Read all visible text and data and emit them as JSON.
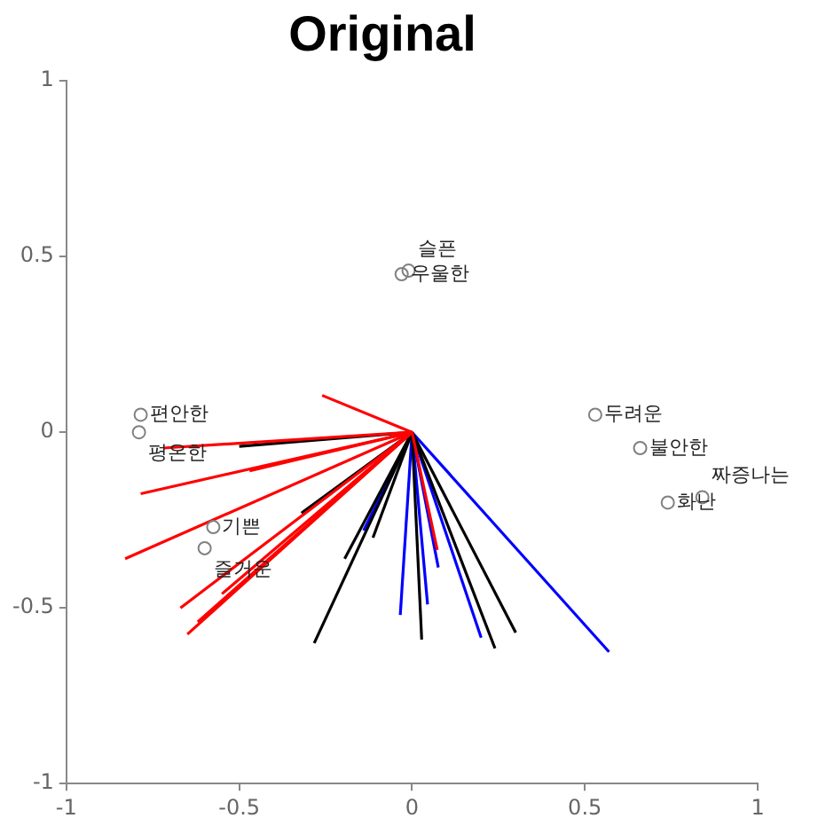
{
  "chart_data": {
    "type": "line",
    "title": "Original",
    "xlim": [
      -1,
      1
    ],
    "ylim": [
      -1,
      1
    ],
    "xticks": [
      -1,
      -0.5,
      0,
      0.5,
      1
    ],
    "yticks": [
      -1,
      -0.5,
      0,
      0.5,
      1
    ],
    "grid": false,
    "legend": false,
    "series": [
      {
        "color": "#ff0000",
        "x": [
          0,
          -0.26
        ],
        "values": [
          0,
          0.105
        ]
      },
      {
        "type": "line",
        "color": "#ff0000",
        "x": [
          0,
          -0.72
        ],
        "values": [
          0,
          -0.045
        ]
      },
      {
        "type": "line",
        "color": "#ff0000",
        "x": [
          0,
          -0.785
        ],
        "values": [
          0,
          -0.175
        ]
      },
      {
        "type": "line",
        "color": "#ff0000",
        "x": [
          0,
          -0.83
        ],
        "values": [
          0,
          -0.36
        ]
      },
      {
        "type": "line",
        "color": "#ff0000",
        "x": [
          0,
          -0.67
        ],
        "values": [
          0,
          -0.5
        ]
      },
      {
        "type": "line",
        "color": "#ff0000",
        "x": [
          0,
          -0.62
        ],
        "values": [
          0,
          -0.54
        ]
      },
      {
        "type": "line",
        "color": "#ff0000",
        "x": [
          0,
          -0.65
        ],
        "values": [
          0,
          -0.575
        ]
      },
      {
        "type": "line",
        "color": "#ff0000",
        "x": [
          0,
          -0.55
        ],
        "values": [
          0,
          -0.46
        ]
      },
      {
        "type": "line",
        "color": "#ff0000",
        "x": [
          0,
          -0.47
        ],
        "values": [
          0,
          -0.11
        ]
      },
      {
        "type": "line",
        "color": "#ff0000",
        "x": [
          0,
          0.073
        ],
        "values": [
          0,
          -0.335
        ]
      },
      {
        "type": "line",
        "color": "#000000",
        "x": [
          0,
          -0.5
        ],
        "values": [
          0,
          -0.04
        ]
      },
      {
        "type": "line",
        "color": "#000000",
        "x": [
          0,
          -0.32
        ],
        "values": [
          0,
          -0.23
        ]
      },
      {
        "type": "line",
        "color": "#000000",
        "x": [
          0,
          -0.195
        ],
        "values": [
          0,
          -0.36
        ]
      },
      {
        "type": "line",
        "color": "#000000",
        "x": [
          0,
          -0.283
        ],
        "values": [
          0,
          -0.6
        ]
      },
      {
        "type": "line",
        "color": "#000000",
        "x": [
          0,
          -0.113
        ],
        "values": [
          0,
          -0.3
        ]
      },
      {
        "type": "line",
        "color": "#000000",
        "x": [
          0,
          0.028
        ],
        "values": [
          0,
          -0.59
        ]
      },
      {
        "type": "line",
        "color": "#000000",
        "x": [
          0,
          0.24
        ],
        "values": [
          0,
          -0.615
        ]
      },
      {
        "type": "line",
        "color": "#000000",
        "x": [
          0,
          0.3
        ],
        "values": [
          0,
          -0.57
        ]
      },
      {
        "type": "line",
        "color": "#0000ff",
        "x": [
          0,
          -0.034
        ],
        "values": [
          0,
          -0.52
        ]
      },
      {
        "type": "line",
        "color": "#0000ff",
        "x": [
          0,
          0.045
        ],
        "values": [
          0,
          -0.49
        ]
      },
      {
        "type": "line",
        "color": "#0000ff",
        "x": [
          0,
          0.076
        ],
        "values": [
          0,
          -0.385
        ]
      },
      {
        "type": "line",
        "color": "#0000ff",
        "x": [
          0,
          0.2
        ],
        "values": [
          0,
          -0.585
        ]
      },
      {
        "type": "line",
        "color": "#0000ff",
        "x": [
          0,
          0.57
        ],
        "values": [
          0,
          -0.625
        ]
      },
      {
        "type": "line",
        "color": "#0000ff",
        "x": [
          0,
          -0.14
        ],
        "values": [
          0,
          -0.28
        ]
      },
      {
        "type": "scatter",
        "color": "#808080",
        "marker": "circle",
        "x": [
          -0.785,
          -0.79,
          -0.575,
          -0.6,
          -0.03,
          -0.01,
          0.53,
          0.66,
          0.74,
          0.84
        ],
        "values": [
          0.05,
          0,
          -0.27,
          -0.33,
          0.45,
          0.46,
          0.05,
          -0.045,
          -0.2,
          -0.185
        ]
      }
    ],
    "annotations": [
      {
        "text": "편안한",
        "x": -0.785,
        "y": 0.05
      },
      {
        "text": "평온한",
        "x": -0.79,
        "y": 0
      },
      {
        "text": "기쁜",
        "x": -0.575,
        "y": -0.27
      },
      {
        "text": "즐거운",
        "x": -0.6,
        "y": -0.33
      },
      {
        "text": "우울한",
        "x": -0.03,
        "y": 0.45
      },
      {
        "text": "슬픈",
        "x": -0.01,
        "y": 0.46
      },
      {
        "text": "두려운",
        "x": 0.53,
        "y": 0.05
      },
      {
        "text": "불안한",
        "x": 0.66,
        "y": -0.045
      },
      {
        "text": "화난",
        "x": 0.74,
        "y": -0.2
      },
      {
        "text": "짜증나는",
        "x": 0.84,
        "y": -0.185
      }
    ]
  }
}
